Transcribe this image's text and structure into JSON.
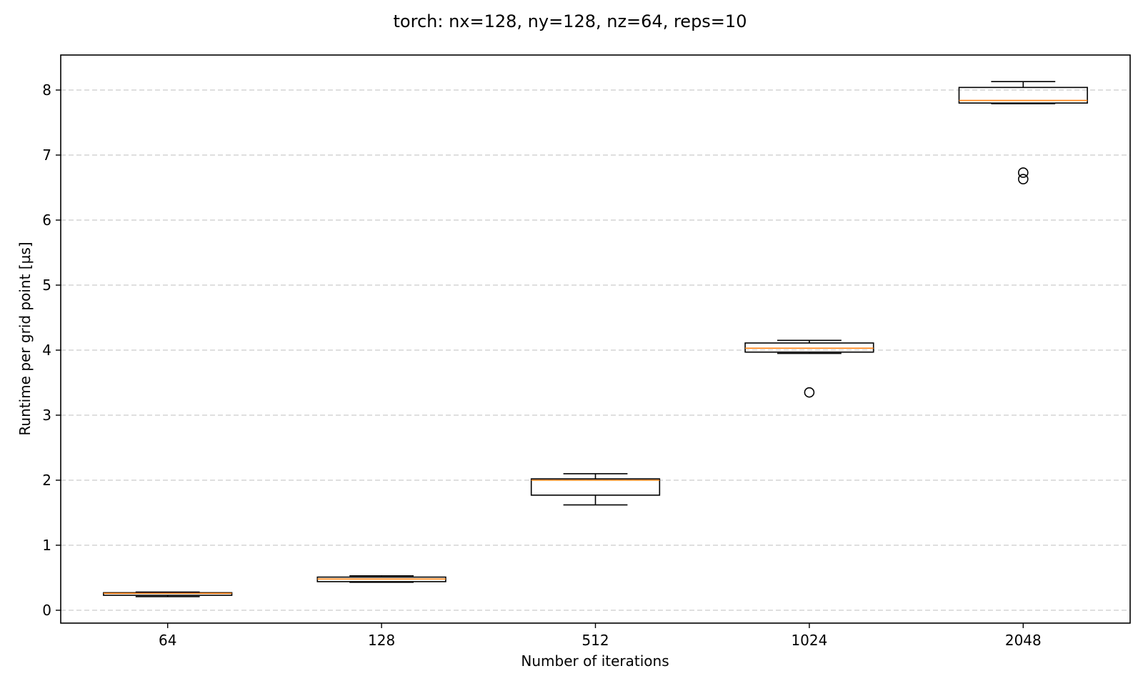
{
  "chart_data": {
    "type": "box",
    "title": "torch: nx=128, ny=128, nz=64, reps=10",
    "xlabel": "Number of iterations",
    "ylabel": "Runtime per grid point [µs]",
    "ylim": [
      -0.19,
      8.55
    ],
    "yticks": [
      0,
      1,
      2,
      3,
      4,
      5,
      6,
      7,
      8
    ],
    "grid": "y, dashed",
    "categories": [
      "64",
      "128",
      "512",
      "1024",
      "2048"
    ],
    "boxes": [
      {
        "category": "64",
        "whisker_low": 0.21,
        "q1": 0.23,
        "median": 0.26,
        "q3": 0.27,
        "whisker_high": 0.28,
        "outliers": []
      },
      {
        "category": "128",
        "whisker_low": 0.43,
        "q1": 0.44,
        "median": 0.48,
        "q3": 0.51,
        "whisker_high": 0.53,
        "outliers": []
      },
      {
        "category": "512",
        "whisker_low": 1.62,
        "q1": 1.77,
        "median": 2.0,
        "q3": 2.02,
        "whisker_high": 2.1,
        "outliers": []
      },
      {
        "category": "1024",
        "whisker_low": 3.95,
        "q1": 3.97,
        "median": 4.03,
        "q3": 4.11,
        "whisker_high": 4.15,
        "outliers": [
          3.35
        ]
      },
      {
        "category": "2048",
        "whisker_low": 7.79,
        "q1": 7.8,
        "median": 7.84,
        "q3": 8.04,
        "whisker_high": 8.13,
        "outliers": [
          6.73,
          6.63
        ]
      }
    ],
    "colors": {
      "box": "#000000",
      "median": "#ff7f0e",
      "grid": "#cccccc",
      "outlier": "#000000"
    }
  }
}
